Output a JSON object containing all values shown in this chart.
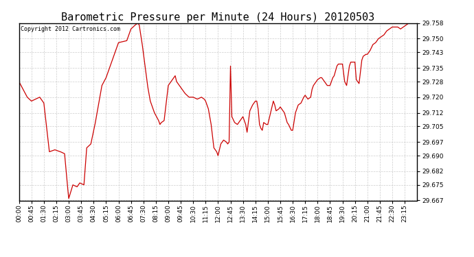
{
  "title": "Barometric Pressure per Minute (24 Hours) 20120503",
  "copyright": "Copyright 2012 Cartronics.com",
  "line_color": "#cc0000",
  "background_color": "#ffffff",
  "plot_bg_color": "#ffffff",
  "grid_color": "#c0c0c0",
  "ylim": [
    29.667,
    29.758
  ],
  "yticks": [
    29.667,
    29.675,
    29.682,
    29.69,
    29.697,
    29.705,
    29.712,
    29.72,
    29.728,
    29.735,
    29.743,
    29.75,
    29.758
  ],
  "xtick_labels": [
    "00:00",
    "00:45",
    "01:30",
    "02:15",
    "03:00",
    "03:45",
    "04:30",
    "05:15",
    "06:00",
    "06:45",
    "07:30",
    "08:15",
    "09:00",
    "09:45",
    "10:30",
    "11:15",
    "12:00",
    "12:45",
    "13:30",
    "14:15",
    "15:00",
    "15:45",
    "16:30",
    "17:15",
    "18:00",
    "18:45",
    "19:30",
    "20:15",
    "21:00",
    "21:45",
    "22:30",
    "23:15"
  ],
  "title_fontsize": 11,
  "tick_fontsize": 6.5,
  "copyright_fontsize": 6,
  "control_points": [
    [
      0,
      29.728
    ],
    [
      30,
      29.72
    ],
    [
      45,
      29.718
    ],
    [
      75,
      29.72
    ],
    [
      90,
      29.717
    ],
    [
      110,
      29.692
    ],
    [
      130,
      29.693
    ],
    [
      150,
      29.692
    ],
    [
      165,
      29.691
    ],
    [
      175,
      29.675
    ],
    [
      180,
      29.668
    ],
    [
      195,
      29.675
    ],
    [
      210,
      29.674
    ],
    [
      220,
      29.676
    ],
    [
      235,
      29.675
    ],
    [
      245,
      29.694
    ],
    [
      260,
      29.696
    ],
    [
      275,
      29.706
    ],
    [
      300,
      29.726
    ],
    [
      315,
      29.73
    ],
    [
      330,
      29.736
    ],
    [
      360,
      29.748
    ],
    [
      390,
      29.749
    ],
    [
      405,
      29.755
    ],
    [
      420,
      29.757
    ],
    [
      430,
      29.758
    ],
    [
      435,
      29.757
    ],
    [
      445,
      29.748
    ],
    [
      455,
      29.737
    ],
    [
      465,
      29.726
    ],
    [
      475,
      29.718
    ],
    [
      490,
      29.712
    ],
    [
      505,
      29.708
    ],
    [
      510,
      29.706
    ],
    [
      515,
      29.707
    ],
    [
      525,
      29.708
    ],
    [
      540,
      29.726
    ],
    [
      555,
      29.729
    ],
    [
      565,
      29.731
    ],
    [
      570,
      29.728
    ],
    [
      580,
      29.726
    ],
    [
      590,
      29.724
    ],
    [
      600,
      29.722
    ],
    [
      615,
      29.72
    ],
    [
      630,
      29.72
    ],
    [
      645,
      29.719
    ],
    [
      660,
      29.72
    ],
    [
      670,
      29.719
    ],
    [
      675,
      29.718
    ],
    [
      685,
      29.714
    ],
    [
      695,
      29.706
    ],
    [
      705,
      29.694
    ],
    [
      715,
      29.692
    ],
    [
      720,
      29.69
    ],
    [
      730,
      29.696
    ],
    [
      740,
      29.698
    ],
    [
      750,
      29.697
    ],
    [
      755,
      29.696
    ],
    [
      760,
      29.697
    ],
    [
      765,
      29.736
    ],
    [
      770,
      29.71
    ],
    [
      780,
      29.707
    ],
    [
      790,
      29.706
    ],
    [
      800,
      29.708
    ],
    [
      810,
      29.71
    ],
    [
      820,
      29.706
    ],
    [
      825,
      29.702
    ],
    [
      835,
      29.713
    ],
    [
      845,
      29.716
    ],
    [
      855,
      29.718
    ],
    [
      860,
      29.718
    ],
    [
      865,
      29.714
    ],
    [
      870,
      29.706
    ],
    [
      875,
      29.704
    ],
    [
      880,
      29.703
    ],
    [
      885,
      29.707
    ],
    [
      895,
      29.706
    ],
    [
      900,
      29.706
    ],
    [
      910,
      29.712
    ],
    [
      915,
      29.715
    ],
    [
      920,
      29.718
    ],
    [
      925,
      29.716
    ],
    [
      930,
      29.713
    ],
    [
      940,
      29.714
    ],
    [
      945,
      29.715
    ],
    [
      955,
      29.713
    ],
    [
      960,
      29.712
    ],
    [
      970,
      29.707
    ],
    [
      975,
      29.706
    ],
    [
      985,
      29.703
    ],
    [
      990,
      29.703
    ],
    [
      1000,
      29.712
    ],
    [
      1010,
      29.716
    ],
    [
      1020,
      29.717
    ],
    [
      1030,
      29.72
    ],
    [
      1035,
      29.721
    ],
    [
      1045,
      29.719
    ],
    [
      1055,
      29.72
    ],
    [
      1060,
      29.724
    ],
    [
      1065,
      29.726
    ],
    [
      1075,
      29.728
    ],
    [
      1080,
      29.729
    ],
    [
      1090,
      29.73
    ],
    [
      1095,
      29.73
    ],
    [
      1100,
      29.729
    ],
    [
      1105,
      29.728
    ],
    [
      1115,
      29.726
    ],
    [
      1125,
      29.726
    ],
    [
      1135,
      29.73
    ],
    [
      1140,
      29.731
    ],
    [
      1150,
      29.736
    ],
    [
      1155,
      29.737
    ],
    [
      1165,
      29.737
    ],
    [
      1170,
      29.737
    ],
    [
      1178,
      29.728
    ],
    [
      1185,
      29.726
    ],
    [
      1195,
      29.736
    ],
    [
      1200,
      29.738
    ],
    [
      1210,
      29.738
    ],
    [
      1215,
      29.738
    ],
    [
      1220,
      29.729
    ],
    [
      1225,
      29.728
    ],
    [
      1230,
      29.727
    ],
    [
      1240,
      29.739
    ],
    [
      1245,
      29.741
    ],
    [
      1255,
      29.742
    ],
    [
      1260,
      29.742
    ],
    [
      1270,
      29.744
    ],
    [
      1280,
      29.747
    ],
    [
      1290,
      29.748
    ],
    [
      1300,
      29.75
    ],
    [
      1310,
      29.751
    ],
    [
      1320,
      29.752
    ],
    [
      1330,
      29.754
    ],
    [
      1340,
      29.755
    ],
    [
      1350,
      29.756
    ],
    [
      1360,
      29.756
    ],
    [
      1370,
      29.756
    ],
    [
      1380,
      29.755
    ],
    [
      1390,
      29.756
    ],
    [
      1400,
      29.757
    ],
    [
      1410,
      29.758
    ],
    [
      1420,
      29.759
    ],
    [
      1430,
      29.759
    ],
    [
      1440,
      29.76
    ]
  ]
}
